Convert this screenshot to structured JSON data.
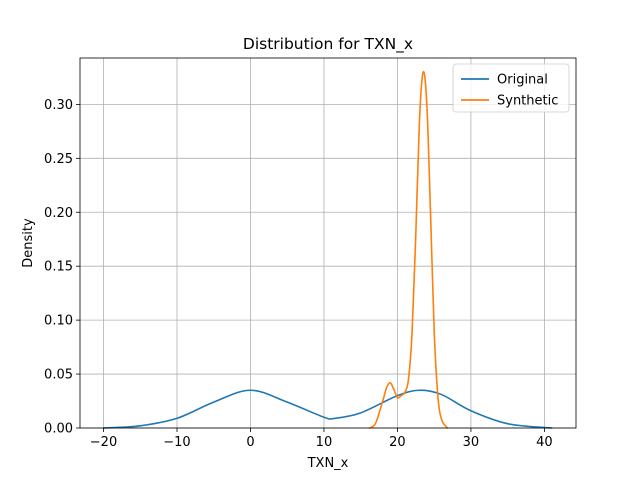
{
  "chart_data": {
    "type": "line",
    "title": "Distribution for TXN_x",
    "xlabel": "TXN_x",
    "ylabel": "Density",
    "xlim": [
      -23.2,
      44.3
    ],
    "ylim": [
      0.0,
      0.343
    ],
    "xticks": [
      -20,
      -10,
      0,
      10,
      20,
      30,
      40
    ],
    "xtick_labels": [
      "−20",
      "−10",
      "0",
      "10",
      "20",
      "30",
      "40"
    ],
    "yticks": [
      0.0,
      0.05,
      0.1,
      0.15,
      0.2,
      0.25,
      0.3
    ],
    "ytick_labels": [
      "0.00",
      "0.05",
      "0.10",
      "0.15",
      "0.20",
      "0.25",
      "0.30"
    ],
    "grid": true,
    "legend": "upper right",
    "series": [
      {
        "name": "Original",
        "color": "#1f77b4",
        "x": [
          -20,
          -15,
          -10,
          -5,
          0,
          5,
          10,
          11.5,
          15,
          20,
          23,
          26,
          30,
          35,
          41
        ],
        "y": [
          0.0,
          0.002,
          0.009,
          0.024,
          0.035,
          0.024,
          0.01,
          0.009,
          0.014,
          0.03,
          0.035,
          0.031,
          0.016,
          0.004,
          0.0
        ]
      },
      {
        "name": "Synthetic",
        "color": "#ff7f0e",
        "x": [
          16.2,
          17.0,
          18.0,
          18.5,
          19.0,
          19.5,
          20.0,
          20.5,
          21.0,
          21.5,
          22.0,
          22.5,
          23.0,
          23.5,
          24.0,
          24.5,
          25.0,
          25.5,
          26.0,
          26.8
        ],
        "y": [
          0.0,
          0.004,
          0.025,
          0.037,
          0.042,
          0.036,
          0.028,
          0.03,
          0.033,
          0.045,
          0.09,
          0.18,
          0.285,
          0.33,
          0.3,
          0.2,
          0.09,
          0.03,
          0.008,
          0.0
        ]
      }
    ]
  }
}
